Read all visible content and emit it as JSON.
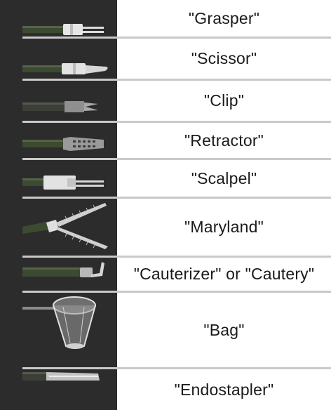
{
  "instruments": [
    {
      "id": "grasper",
      "label": "\"Grasper\"",
      "icon": "grasper-icon"
    },
    {
      "id": "scissor",
      "label": "\"Scissor\"",
      "icon": "scissor-icon"
    },
    {
      "id": "clip",
      "label": "\"Clip\"",
      "icon": "clip-icon"
    },
    {
      "id": "retractor",
      "label": "\"Retractor\"",
      "icon": "retractor-icon"
    },
    {
      "id": "scalpel",
      "label": "\"Scalpel\"",
      "icon": "scalpel-icon"
    },
    {
      "id": "maryland",
      "label": "\"Maryland\"",
      "icon": "maryland-icon"
    },
    {
      "id": "cauterizer",
      "label": "\"Cauterizer\" or \"Cautery\"",
      "icon": "cauterizer-icon"
    },
    {
      "id": "bag",
      "label": "\"Bag\"",
      "icon": "bag-icon"
    },
    {
      "id": "endostapler",
      "label": "\"Endostapler\"",
      "icon": "endostapler-icon"
    }
  ],
  "colors": {
    "panel": "#2c2c2c",
    "shaft": "#3d4a32",
    "metal": "#d8d8d8",
    "divider": "#c9c9c9"
  }
}
